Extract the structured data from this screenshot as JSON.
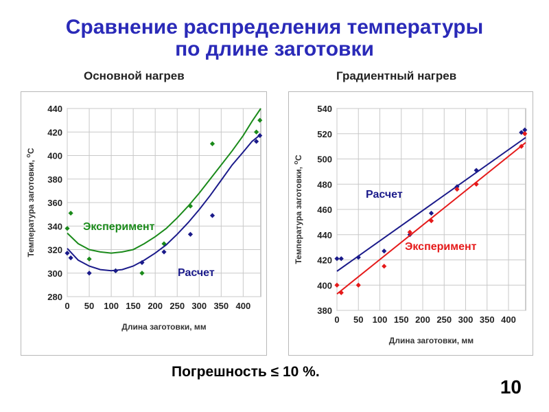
{
  "slide": {
    "title_line1": "Сравнение распределения температуры",
    "title_line2": "по длине заготовки",
    "footer_text": "Погрешность ≤ 10 %.",
    "page_number": "10"
  },
  "chart_data": [
    {
      "type": "scatter",
      "title": "Основной нагрев",
      "xlabel": "Длина заготовки, мм",
      "ylabel": "Температура заготовки, °C",
      "ylabel_main": "Температура заготовки, ",
      "ylabel_unit_sup": "o",
      "ylabel_unit": "C",
      "xlim": [
        0,
        440
      ],
      "ylim": [
        280,
        440
      ],
      "xticks": [
        0,
        50,
        100,
        150,
        200,
        250,
        300,
        350,
        400
      ],
      "yticks": [
        280,
        300,
        320,
        340,
        360,
        380,
        400,
        420,
        440
      ],
      "grid": true,
      "series": [
        {
          "name": "Эксперимент",
          "color": "#1a8a1a",
          "marker": "diamond",
          "points": [
            [
              0,
              338
            ],
            [
              8,
              351
            ],
            [
              50,
              312
            ],
            [
              110,
              302
            ],
            [
              170,
              300
            ],
            [
              220,
              325
            ],
            [
              280,
              357
            ],
            [
              330,
              410
            ],
            [
              430,
              420
            ],
            [
              438,
              430
            ]
          ],
          "curve": [
            [
              0,
              334
            ],
            [
              25,
              325
            ],
            [
              50,
              320
            ],
            [
              75,
              318
            ],
            [
              100,
              317
            ],
            [
              125,
              318
            ],
            [
              150,
              320
            ],
            [
              175,
              325
            ],
            [
              200,
              331
            ],
            [
              225,
              338
            ],
            [
              250,
              347
            ],
            [
              275,
              357
            ],
            [
              300,
              368
            ],
            [
              325,
              380
            ],
            [
              350,
              392
            ],
            [
              375,
              404
            ],
            [
              400,
              417
            ],
            [
              420,
              429
            ],
            [
              440,
              440
            ]
          ]
        },
        {
          "name": "Расчет",
          "color": "#1a1a8a",
          "marker": "diamond",
          "points": [
            [
              0,
              317
            ],
            [
              8,
              313
            ],
            [
              50,
              300
            ],
            [
              110,
              302
            ],
            [
              170,
              309
            ],
            [
              220,
              318
            ],
            [
              280,
              333
            ],
            [
              330,
              349
            ],
            [
              430,
              412
            ],
            [
              438,
              417
            ]
          ],
          "curve": [
            [
              0,
              321
            ],
            [
              25,
              311
            ],
            [
              50,
              306
            ],
            [
              75,
              303
            ],
            [
              100,
              302
            ],
            [
              125,
              303
            ],
            [
              150,
              306
            ],
            [
              175,
              311
            ],
            [
              200,
              317
            ],
            [
              225,
              324
            ],
            [
              250,
              333
            ],
            [
              275,
              343
            ],
            [
              300,
              354
            ],
            [
              325,
              366
            ],
            [
              350,
              379
            ],
            [
              375,
              392
            ],
            [
              400,
              403
            ],
            [
              420,
              412
            ],
            [
              440,
              418
            ]
          ]
        }
      ],
      "annotations": [
        "Эксперимент",
        "Расчет"
      ]
    },
    {
      "type": "scatter",
      "title": "Градиентный нагрев",
      "xlabel": "Длина заготовки, мм",
      "ylabel": "Температура заготовки, °C",
      "ylabel_main": "Температура заготовки, ",
      "ylabel_unit_sup": "o",
      "ylabel_unit": "C",
      "xlim": [
        0,
        440
      ],
      "ylim": [
        380,
        540
      ],
      "xticks": [
        0,
        50,
        100,
        150,
        200,
        250,
        300,
        350,
        400
      ],
      "yticks": [
        380,
        400,
        420,
        440,
        460,
        480,
        500,
        520,
        540
      ],
      "grid": true,
      "series": [
        {
          "name": "Расчет",
          "color": "#1a1a8a",
          "marker": "diamond",
          "points": [
            [
              0,
              421
            ],
            [
              10,
              421
            ],
            [
              50,
              422
            ],
            [
              110,
              427
            ],
            [
              170,
              440
            ],
            [
              220,
              457
            ],
            [
              280,
              478
            ],
            [
              325,
              491
            ],
            [
              430,
              521
            ],
            [
              438,
              523
            ]
          ],
          "curve": [
            [
              0,
              411
            ],
            [
              440,
              517
            ]
          ]
        },
        {
          "name": "Эксперимент",
          "color": "#e51a1a",
          "marker": "diamond",
          "points": [
            [
              0,
              400
            ],
            [
              10,
              394
            ],
            [
              50,
              400
            ],
            [
              110,
              415
            ],
            [
              170,
              442
            ],
            [
              220,
              451
            ],
            [
              280,
              476
            ],
            [
              325,
              480
            ],
            [
              430,
              510
            ],
            [
              438,
              520
            ]
          ],
          "curve": [
            [
              0,
              393
            ],
            [
              440,
              513
            ]
          ]
        }
      ],
      "annotations": [
        "Расчет",
        "Эксперимент"
      ]
    }
  ]
}
